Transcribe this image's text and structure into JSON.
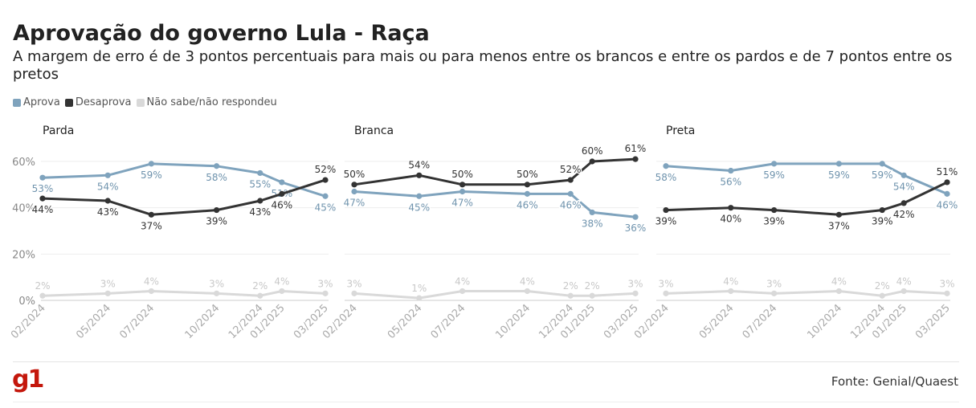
{
  "header": {
    "title": "Aprovação do governo Lula - Raça",
    "subtitle": "A margem de erro é de 3 pontos percentuais para mais ou para menos entre os brancos e entre os pardos e de 7 pontos entre os pretos"
  },
  "legend": [
    {
      "label": "Aprova",
      "color": "#7fa3bd"
    },
    {
      "label": "Desaprova",
      "color": "#333333"
    },
    {
      "label": "Não sabe/não respondeu",
      "color": "#d9d9d9"
    }
  ],
  "footer": {
    "logo": "g1",
    "source": "Fonte: Genial/Quaest"
  },
  "chart_data": [
    {
      "type": "line",
      "title": "Parda",
      "x": [
        "02/2024",
        "05/2024",
        "07/2024",
        "10/2024",
        "12/2024",
        "01/2025",
        "03/2025"
      ],
      "ylim": [
        0,
        60
      ],
      "yticks": [
        "0%",
        "20%",
        "40%",
        "60%"
      ],
      "grid": true,
      "series": [
        {
          "name": "Aprova",
          "color": "#7fa3bd",
          "values": [
            53,
            54,
            59,
            58,
            55,
            51,
            45
          ]
        },
        {
          "name": "Desaprova",
          "color": "#333333",
          "values": [
            44,
            43,
            37,
            39,
            43,
            46,
            52
          ]
        },
        {
          "name": "Não sabe/não respondeu",
          "color": "#d9d9d9",
          "values": [
            2,
            3,
            4,
            3,
            2,
            4,
            3
          ]
        }
      ]
    },
    {
      "type": "line",
      "title": "Branca",
      "x": [
        "02/2024",
        "05/2024",
        "07/2024",
        "10/2024",
        "12/2024",
        "01/2025",
        "03/2025"
      ],
      "ylim": [
        0,
        60
      ],
      "grid": true,
      "series": [
        {
          "name": "Aprova",
          "color": "#7fa3bd",
          "values": [
            47,
            45,
            47,
            46,
            46,
            38,
            36
          ]
        },
        {
          "name": "Desaprova",
          "color": "#333333",
          "values": [
            50,
            54,
            50,
            50,
            52,
            60,
            61
          ]
        },
        {
          "name": "Não sabe/não respondeu",
          "color": "#d9d9d9",
          "values": [
            3,
            1,
            4,
            4,
            2,
            2,
            3
          ]
        }
      ]
    },
    {
      "type": "line",
      "title": "Preta",
      "x": [
        "02/2024",
        "05/2024",
        "07/2024",
        "10/2024",
        "12/2024",
        "01/2025",
        "03/2025"
      ],
      "ylim": [
        0,
        60
      ],
      "grid": true,
      "series": [
        {
          "name": "Aprova",
          "color": "#7fa3bd",
          "values": [
            58,
            56,
            59,
            59,
            59,
            54,
            46
          ]
        },
        {
          "name": "Desaprova",
          "color": "#333333",
          "values": [
            39,
            40,
            39,
            37,
            39,
            42,
            51
          ]
        },
        {
          "name": "Não sabe/não respondeu",
          "color": "#d9d9d9",
          "values": [
            3,
            4,
            3,
            4,
            2,
            4,
            3
          ]
        }
      ]
    }
  ]
}
